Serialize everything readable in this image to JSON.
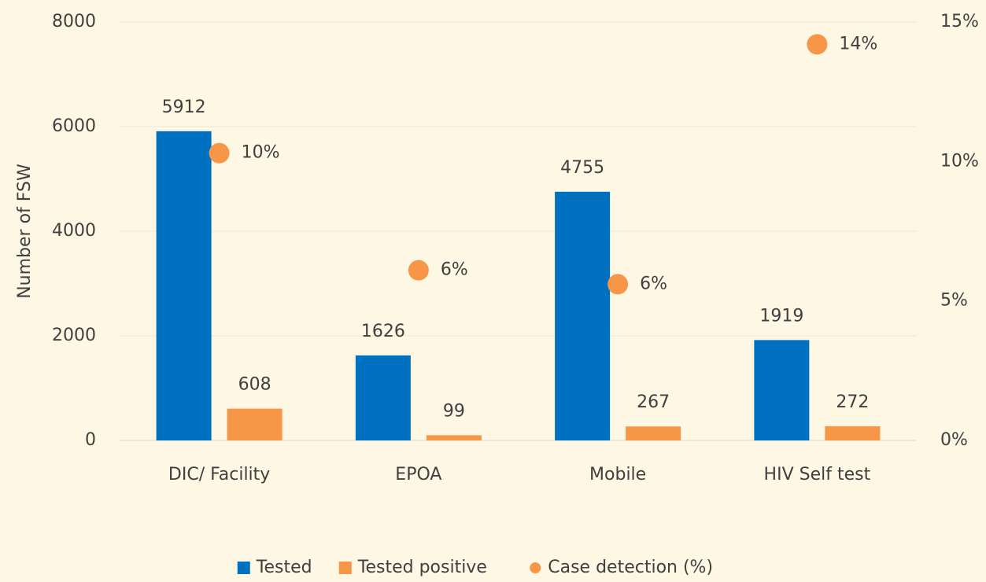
{
  "chart_data": {
    "type": "bar",
    "categories": [
      "DIC/ Facility",
      "EPOA",
      "Mobile",
      "HIV Self test"
    ],
    "series": [
      {
        "name": "Tested",
        "color": "#0070c0",
        "values": [
          5912,
          1626,
          4755,
          1919
        ]
      },
      {
        "name": "Tested positive",
        "color": "#f79646",
        "values": [
          608,
          99,
          267,
          272
        ]
      },
      {
        "name": "Case detection (%)",
        "color": "#f79646",
        "type": "scatter",
        "axis": "y2",
        "values": [
          10.3,
          6.1,
          5.6,
          14.2
        ],
        "value_labels": [
          "10%",
          "6%",
          "6%",
          "14%"
        ]
      }
    ],
    "ylabel": "Number of FSW",
    "ylim": [
      0,
      8000
    ],
    "yticks": [
      0,
      2000,
      4000,
      6000,
      8000
    ],
    "y2lim": [
      0,
      15
    ],
    "y2ticks": [
      {
        "value": 0,
        "label": "0%"
      },
      {
        "value": 5,
        "label": "5%"
      },
      {
        "value": 10,
        "label": "10%"
      },
      {
        "value": 15,
        "label": "15%"
      }
    ],
    "grid": true,
    "legend": "bottom"
  }
}
